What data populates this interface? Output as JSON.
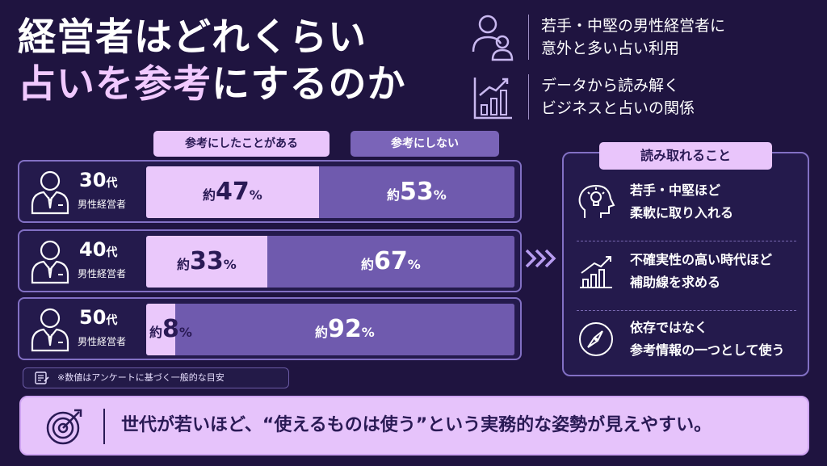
{
  "title": {
    "line1": "経営者はどれくらい",
    "line2_hl": "占いを参考",
    "line2_rest": "にするのか"
  },
  "top_info": [
    {
      "icon": "people-icon",
      "line1": "若手・中堅の男性経営者に",
      "line2": "意外と多い占い利用"
    },
    {
      "icon": "growth-chart-icon",
      "line1": "データから読み解く",
      "line2": "ビジネスと占いの関係"
    }
  ],
  "legend": {
    "yes": "参考にしたことがある",
    "no": "参考にしない"
  },
  "colors": {
    "yes": "#eac8fb",
    "no": "#6f5aae",
    "background": "#1f1440",
    "accent": "#e6c3fb"
  },
  "rows": [
    {
      "age": "30",
      "age_unit": "代",
      "sub": "男性経営者"
    },
    {
      "age": "40",
      "age_unit": "代",
      "sub": "男性経営者"
    },
    {
      "age": "50",
      "age_unit": "代",
      "sub": "男性経営者"
    }
  ],
  "label_prefix": "約",
  "label_unit": "%",
  "chart_data": {
    "type": "bar",
    "categories": [
      "30代 男性経営者",
      "40代 男性経営者",
      "50代 男性経営者"
    ],
    "series": [
      {
        "name": "参考にしたことがある",
        "values": [
          47,
          33,
          8
        ]
      },
      {
        "name": "参考にしない",
        "values": [
          53,
          67,
          92
        ]
      }
    ],
    "title": "",
    "xlabel": "",
    "ylabel": "",
    "ylim": [
      0,
      100
    ],
    "stacked": true,
    "orientation": "horizontal",
    "legend_position": "top"
  },
  "insights": {
    "heading": "読み取れること",
    "items": [
      {
        "icon": "lightbulb-head-icon",
        "line1": "若手・中堅ほど",
        "line2": "柔軟に取り入れる"
      },
      {
        "icon": "rising-chart-icon",
        "line1": "不確実性の高い時代ほど",
        "line2": "補助線を求める"
      },
      {
        "icon": "compass-icon",
        "line1": "依存ではなく",
        "line2": "参考情報の一つとして使う"
      }
    ]
  },
  "note": "※数値はアンケートに基づく一般的な目安",
  "bottom_message": "世代が若いほど、“使えるものは使う”という実務的な姿勢が見えやすい。"
}
